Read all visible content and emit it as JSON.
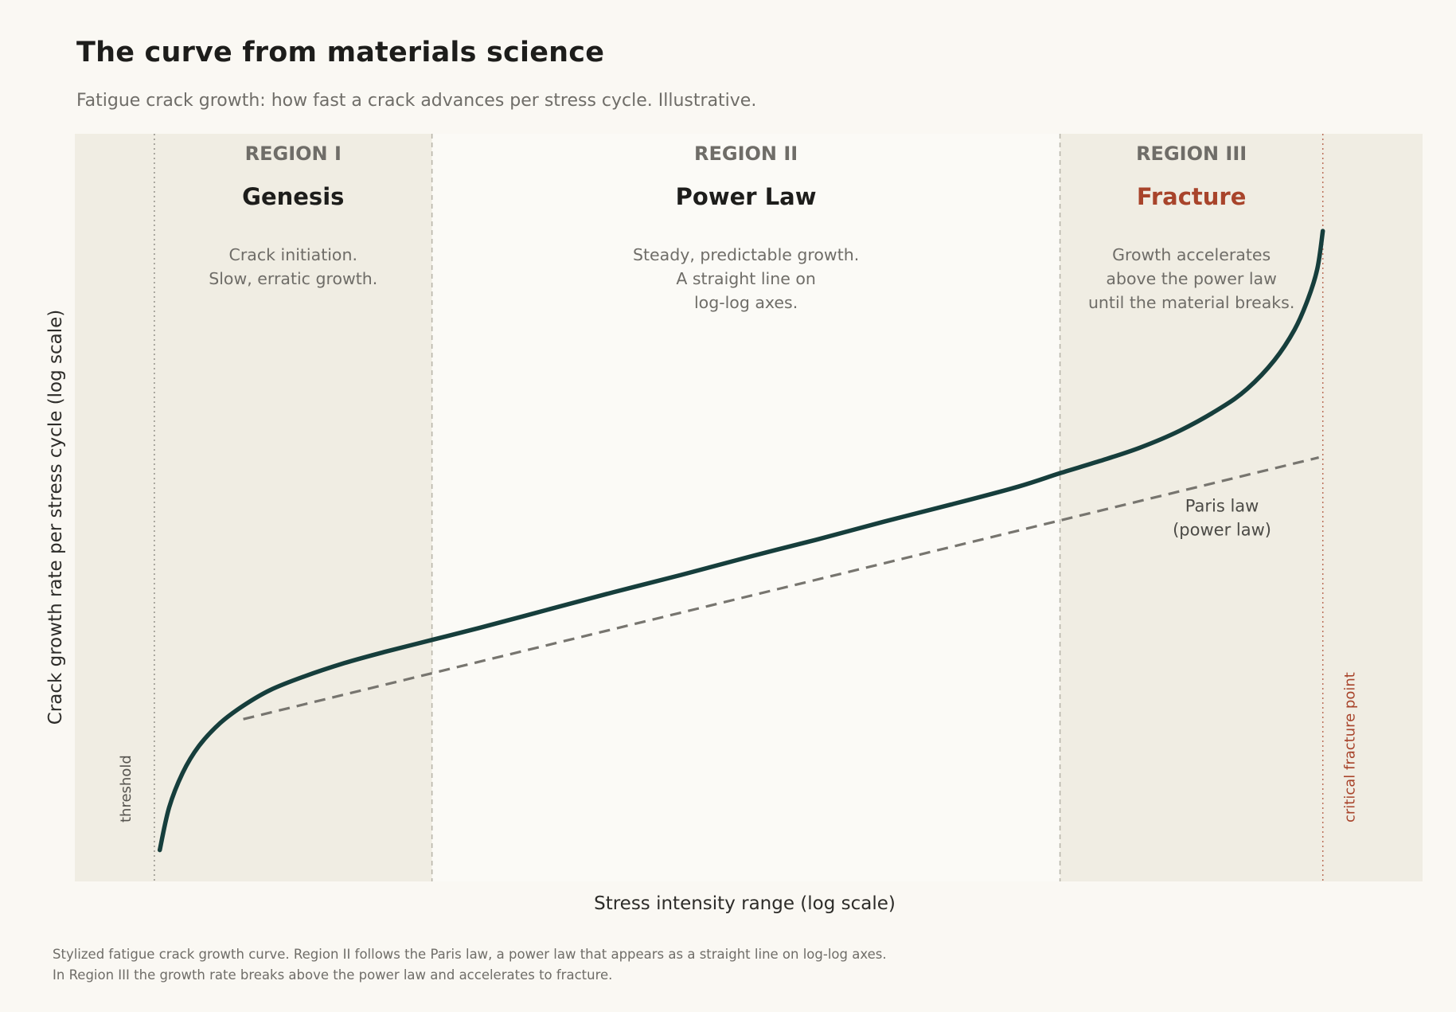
{
  "header": {
    "title": "The curve from materials science",
    "subtitle": "Fatigue crack growth: how fast a crack advances per stress cycle. Illustrative."
  },
  "caption": {
    "line1": "Stylized fatigue crack growth curve. Region II follows the Paris law, a power law that appears as a straight line on log-log axes.",
    "line2": "In Region III the growth rate breaks above the power law and accelerates to fracture."
  },
  "colors": {
    "background": "#faf8f3",
    "shaded_region": "#f0ede3",
    "curve": "#163e3c",
    "paris_line": "#77756f",
    "fracture_accent": "#a8442b",
    "region_label": "#6f6d68",
    "boundary_line": "#b9b6ab"
  },
  "chart_data": {
    "type": "line",
    "title": "The curve from materials science",
    "subtitle": "Fatigue crack growth: how fast a crack advances per stress cycle. Illustrative.",
    "xlabel": "Stress intensity range  (log scale)",
    "ylabel": "Crack growth rate per stress cycle  (log scale)",
    "xscale": "log",
    "yscale": "log",
    "xlim": [
      0,
      1
    ],
    "ylim": [
      0,
      1
    ],
    "ticks": "none",
    "grid": false,
    "regions": [
      {
        "roman": "REGION I",
        "name": "Genesis",
        "description": [
          "Crack initiation.",
          "Slow, erratic growth."
        ],
        "x_start": 0.059,
        "x_end": 0.265,
        "shaded": true,
        "highlight": false
      },
      {
        "roman": "REGION II",
        "name": "Power Law",
        "description": [
          "Steady, predictable growth.",
          "A straight line on",
          "log-log axes."
        ],
        "x_start": 0.265,
        "x_end": 0.731,
        "shaded": false,
        "highlight": false
      },
      {
        "roman": "REGION III",
        "name": "Fracture",
        "description": [
          "Growth accelerates",
          "above the power law",
          "until the material breaks."
        ],
        "x_start": 0.731,
        "x_end": 0.926,
        "shaded": true,
        "highlight": true
      }
    ],
    "reference_lines": [
      {
        "label": "threshold",
        "x": 0.059
      },
      {
        "label": "critical fracture point",
        "x": 0.926
      }
    ],
    "series": [
      {
        "x": [
          0.063,
          0.07,
          0.08,
          0.092,
          0.108,
          0.125,
          0.145,
          0.17,
          0.2,
          0.23,
          0.265,
          0.3,
          0.35,
          0.4,
          0.45,
          0.5,
          0.55,
          0.6,
          0.65,
          0.7,
          0.731,
          0.76,
          0.79,
          0.82,
          0.85,
          0.87,
          0.89,
          0.905,
          0.915,
          0.922,
          0.926
        ],
        "y": [
          0.042,
          0.099,
          0.145,
          0.181,
          0.212,
          0.235,
          0.256,
          0.274,
          0.292,
          0.307,
          0.323,
          0.339,
          0.363,
          0.387,
          0.41,
          0.434,
          0.457,
          0.481,
          0.504,
          0.528,
          0.546,
          0.562,
          0.58,
          0.603,
          0.633,
          0.659,
          0.697,
          0.738,
          0.779,
          0.82,
          0.87
        ]
      },
      {
        "name": "Paris law\n(power law)",
        "style": "dashed",
        "x": [
          0.125,
          0.923
        ],
        "y": [
          0.217,
          0.567
        ]
      }
    ],
    "annotations": [
      {
        "text": [
          "Paris law",
          "(power law)"
        ],
        "x": 0.85,
        "y": 0.5
      }
    ]
  }
}
